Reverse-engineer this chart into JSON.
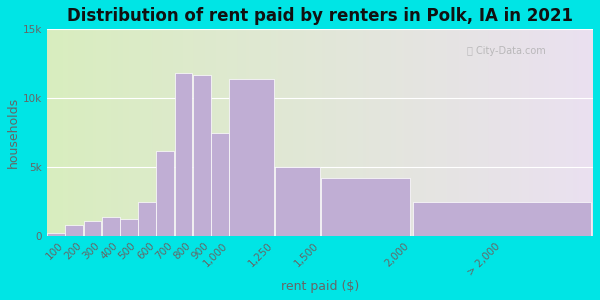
{
  "title": "Distribution of rent paid by renters in Polk, IA in 2021",
  "xlabel": "rent paid ($)",
  "ylabel": "households",
  "background_color": "#00e5e5",
  "bar_color": "#c0aed4",
  "bar_edge_color": "#ffffff",
  "bins_left": [
    0,
    100,
    200,
    300,
    400,
    500,
    600,
    700,
    800,
    900,
    1000,
    1250,
    1500,
    2000
  ],
  "bins_right": [
    100,
    200,
    300,
    400,
    500,
    600,
    700,
    800,
    900,
    1000,
    1250,
    1500,
    2000,
    3000
  ],
  "tick_positions": [
    100,
    200,
    300,
    400,
    500,
    600,
    700,
    800,
    900,
    1000,
    1250,
    1500,
    2000,
    2500
  ],
  "tick_labels": [
    "100",
    "200",
    "300",
    "400",
    "500",
    "600",
    "700",
    "800",
    "900",
    "1,000",
    "1,250",
    "1,500",
    "2,000",
    "> 2,000"
  ],
  "values": [
    200,
    800,
    1100,
    1400,
    1200,
    2500,
    6200,
    11800,
    11700,
    7500,
    11400,
    5000,
    4200,
    2500
  ],
  "ylim": [
    0,
    15000
  ],
  "yticks": [
    0,
    5000,
    10000,
    15000
  ],
  "ytick_labels": [
    "0",
    "5k",
    "10k",
    "15k"
  ],
  "title_fontsize": 12,
  "axis_label_fontsize": 9,
  "tick_fontsize": 7.5,
  "watermark_text": "City-Data.com",
  "bg_left_color": "#d8edbe",
  "bg_right_color": "#eae0f0"
}
